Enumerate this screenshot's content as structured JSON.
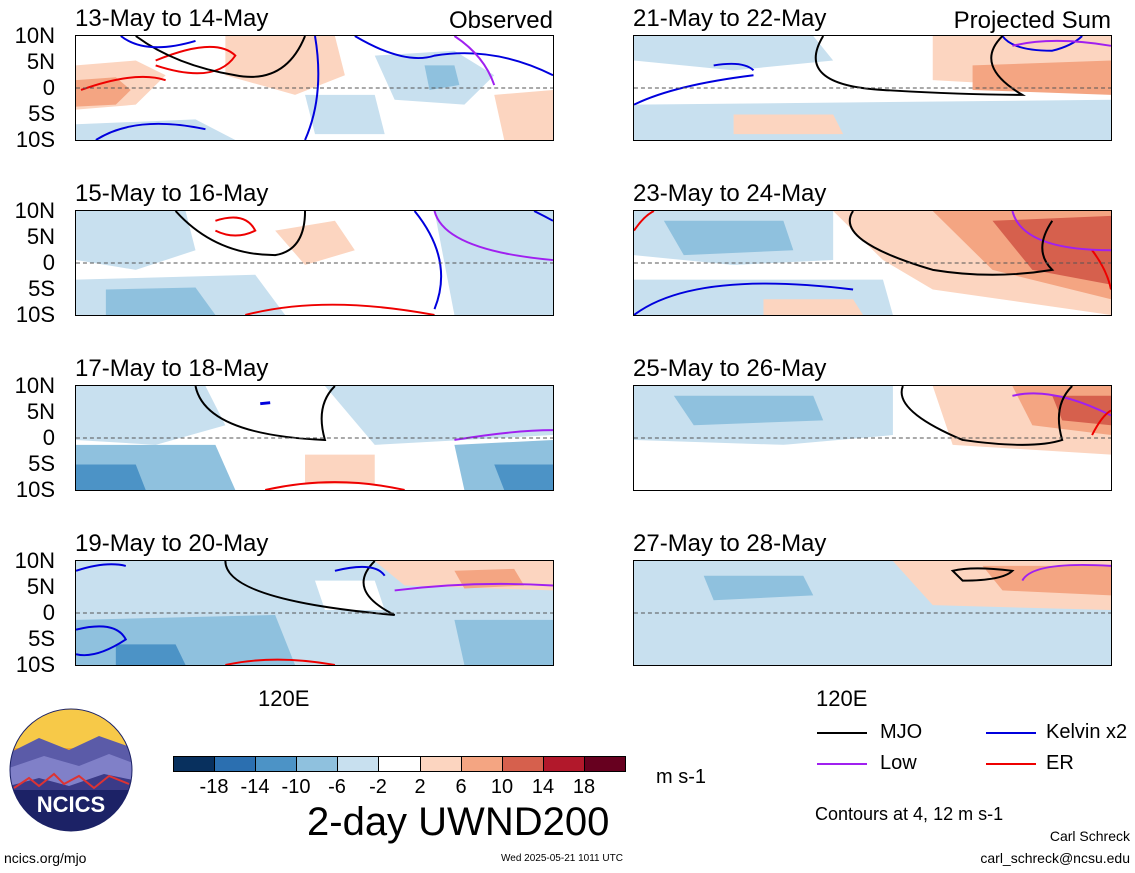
{
  "observed_label": "Observed",
  "projected_label": "Projected Sum",
  "lat_ticks": [
    "10N",
    "5N",
    "0",
    "5S",
    "10S"
  ],
  "lon_label": "120E",
  "panels": [
    {
      "title": "13-May to 14-May"
    },
    {
      "title": "15-May to 16-May"
    },
    {
      "title": "17-May to 18-May"
    },
    {
      "title": "19-May to 20-May"
    },
    {
      "title": "21-May to 22-May"
    },
    {
      "title": "23-May to 24-May"
    },
    {
      "title": "25-May to 26-May"
    },
    {
      "title": "27-May to 28-May"
    }
  ],
  "colorbar": {
    "colors": [
      "#08305e",
      "#2b6fb0",
      "#4c93c6",
      "#8fc1de",
      "#c8e0ef",
      "#ffffff",
      "#fcd5c0",
      "#f4a582",
      "#d6604d",
      "#b2182b",
      "#67001f"
    ],
    "ticks": [
      "-18",
      "-14",
      "-10",
      "-6",
      "-2",
      "2",
      "6",
      "10",
      "14",
      "18"
    ]
  },
  "units": "m s-1",
  "variable_title": "2-day UWND200",
  "legend": {
    "items": [
      {
        "label": "MJO",
        "color": "#000000"
      },
      {
        "label": "Kelvin x2",
        "color": "#0000dd"
      },
      {
        "label": "Low",
        "color": "#a020f0"
      },
      {
        "label": "ER",
        "color": "#ee0000"
      }
    ],
    "contours_note": "Contours at 4, 12 m s-1"
  },
  "logo_text": "NCICS",
  "footer": {
    "url": "ncics.org/mjo",
    "timestamp": "Wed 2025-05-21 1011 UTC",
    "author": "Carl Schreck",
    "email": "carl_schreck@ncsu.edu"
  }
}
